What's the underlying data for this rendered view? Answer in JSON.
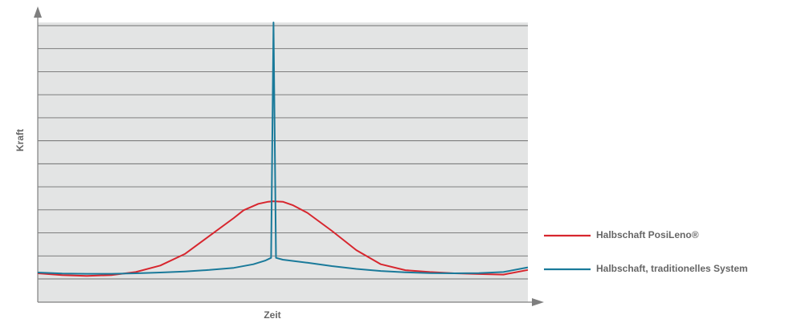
{
  "chart_data": {
    "type": "line",
    "xlabel": "Zeit",
    "ylabel": "Kraft",
    "xlim": [
      0,
      100
    ],
    "ylim": [
      0,
      100
    ],
    "grid": true,
    "background": "#e3e4e4",
    "legend_placement": "right",
    "series": [
      {
        "name": "Halbschaft PosiLeno®",
        "color": "#d7262e",
        "x": [
          0,
          5,
          10,
          15,
          20,
          25,
          30,
          35,
          40,
          42,
          45,
          47,
          48,
          50,
          52,
          55,
          60,
          65,
          70,
          75,
          80,
          85,
          90,
          95,
          100
        ],
        "y": [
          2.5,
          1.8,
          1.5,
          1.8,
          3.0,
          5.5,
          10.0,
          17.0,
          24.0,
          27.0,
          29.5,
          30.3,
          30.5,
          30.3,
          29.0,
          26.0,
          19.0,
          11.5,
          6.0,
          3.7,
          3.0,
          2.5,
          2.2,
          2.0,
          3.8
        ]
      },
      {
        "name": "Halbschaft, traditionelles System",
        "color": "#1a7a9a",
        "x": [
          0,
          5,
          10,
          15,
          20,
          25,
          30,
          35,
          40,
          44,
          46.5,
          47.6,
          48.1,
          48.6,
          50,
          55,
          60,
          65,
          70,
          75,
          80,
          85,
          90,
          95,
          100
        ],
        "y": [
          2.8,
          2.4,
          2.3,
          2.3,
          2.5,
          2.8,
          3.2,
          3.8,
          4.6,
          6.0,
          7.5,
          8.5,
          100,
          8.5,
          7.8,
          6.6,
          5.3,
          4.2,
          3.4,
          2.9,
          2.6,
          2.5,
          2.6,
          3.0,
          4.8
        ]
      }
    ]
  }
}
